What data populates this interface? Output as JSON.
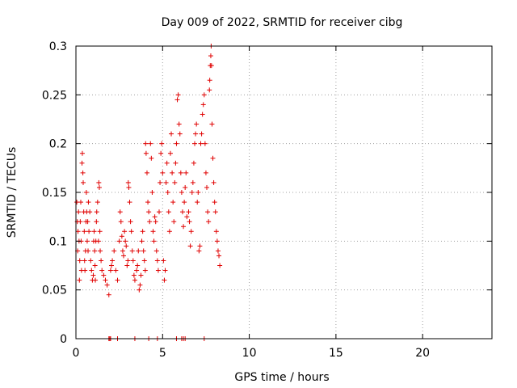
{
  "chart_data": {
    "type": "scatter",
    "title": "Day 009 of 2022, SRMTID for receiver cibg",
    "xlabel": "GPS time / hours",
    "ylabel": "SRMTID / TECUs",
    "xlim": [
      0,
      24
    ],
    "ylim": [
      0,
      0.3
    ],
    "xticks": [
      0,
      5,
      10,
      15,
      20
    ],
    "yticks": [
      0,
      0.05,
      0.1,
      0.15,
      0.2,
      0.25,
      0.3
    ],
    "xtick_labels": [
      "0",
      "5",
      "10",
      "15",
      "20"
    ],
    "ytick_labels": [
      "0",
      "0.05",
      "0.1",
      "0.15",
      "0.2",
      "0.25",
      "0.3"
    ],
    "grid": true,
    "legend": "none",
    "marker": "+",
    "color": "#e00000",
    "points": [
      [
        0.05,
        0.14
      ],
      [
        0.08,
        0.12
      ],
      [
        0.1,
        0.09
      ],
      [
        0.12,
        0.11
      ],
      [
        0.15,
        0.13
      ],
      [
        0.18,
        0.1
      ],
      [
        0.2,
        0.06
      ],
      [
        0.22,
        0.08
      ],
      [
        0.25,
        0.12
      ],
      [
        0.28,
        0.14
      ],
      [
        0.3,
        0.1
      ],
      [
        0.32,
        0.07
      ],
      [
        0.35,
        0.18
      ],
      [
        0.37,
        0.19
      ],
      [
        0.4,
        0.17
      ],
      [
        0.42,
        0.16
      ],
      [
        0.45,
        0.13
      ],
      [
        0.48,
        0.11
      ],
      [
        0.5,
        0.08
      ],
      [
        0.52,
        0.07
      ],
      [
        0.55,
        0.09
      ],
      [
        0.58,
        0.12
      ],
      [
        0.6,
        0.15
      ],
      [
        0.62,
        0.13
      ],
      [
        0.65,
        0.1
      ],
      [
        0.68,
        0.12
      ],
      [
        0.7,
        0.09
      ],
      [
        0.72,
        0.14
      ],
      [
        0.75,
        0.11
      ],
      [
        0.8,
        0.13
      ],
      [
        0.85,
        0.08
      ],
      [
        0.9,
        0.07
      ],
      [
        0.95,
        0.06
      ],
      [
        1.0,
        0.065
      ],
      [
        1.02,
        0.1
      ],
      [
        1.05,
        0.11
      ],
      [
        1.08,
        0.09
      ],
      [
        1.1,
        0.075
      ],
      [
        1.12,
        0.06
      ],
      [
        1.15,
        0.1
      ],
      [
        1.18,
        0.12
      ],
      [
        1.2,
        0.13
      ],
      [
        1.25,
        0.14
      ],
      [
        1.3,
        0.1
      ],
      [
        1.32,
        0.16
      ],
      [
        1.35,
        0.155
      ],
      [
        1.38,
        0.11
      ],
      [
        1.4,
        0.09
      ],
      [
        1.45,
        0.08
      ],
      [
        1.5,
        0.07
      ],
      [
        1.6,
        0.065
      ],
      [
        1.7,
        0.06
      ],
      [
        1.8,
        0.055
      ],
      [
        1.9,
        0.045
      ],
      [
        2.0,
        0.07
      ],
      [
        2.05,
        0.075
      ],
      [
        2.1,
        0.08
      ],
      [
        2.2,
        0.09
      ],
      [
        2.3,
        0.07
      ],
      [
        2.4,
        0.06
      ],
      [
        2.5,
        0.1
      ],
      [
        2.55,
        0.13
      ],
      [
        2.6,
        0.12
      ],
      [
        2.65,
        0.105
      ],
      [
        2.7,
        0.09
      ],
      [
        2.75,
        0.085
      ],
      [
        2.8,
        0.11
      ],
      [
        2.85,
        0.1
      ],
      [
        2.9,
        0.095
      ],
      [
        2.95,
        0.075
      ],
      [
        3.0,
        0.08
      ],
      [
        3.02,
        0.16
      ],
      [
        3.05,
        0.155
      ],
      [
        3.1,
        0.14
      ],
      [
        3.15,
        0.12
      ],
      [
        3.2,
        0.11
      ],
      [
        3.25,
        0.09
      ],
      [
        3.3,
        0.08
      ],
      [
        3.35,
        0.065
      ],
      [
        3.4,
        0.06
      ],
      [
        3.5,
        0.07
      ],
      [
        3.55,
        0.075
      ],
      [
        3.6,
        0.09
      ],
      [
        3.65,
        0.05
      ],
      [
        3.7,
        0.055
      ],
      [
        3.75,
        0.065
      ],
      [
        3.8,
        0.1
      ],
      [
        3.85,
        0.11
      ],
      [
        3.9,
        0.09
      ],
      [
        3.95,
        0.08
      ],
      [
        4.0,
        0.07
      ],
      [
        4.02,
        0.2
      ],
      [
        4.05,
        0.19
      ],
      [
        4.1,
        0.17
      ],
      [
        4.15,
        0.14
      ],
      [
        4.2,
        0.13
      ],
      [
        4.25,
        0.12
      ],
      [
        4.3,
        0.2
      ],
      [
        4.35,
        0.185
      ],
      [
        4.4,
        0.15
      ],
      [
        4.45,
        0.11
      ],
      [
        4.5,
        0.1
      ],
      [
        4.55,
        0.125
      ],
      [
        4.6,
        0.12
      ],
      [
        4.65,
        0.09
      ],
      [
        4.7,
        0.08
      ],
      [
        4.75,
        0.07
      ],
      [
        4.8,
        0.13
      ],
      [
        4.85,
        0.16
      ],
      [
        4.9,
        0.19
      ],
      [
        4.95,
        0.2
      ],
      [
        5.0,
        0.17
      ],
      [
        5.05,
        0.08
      ],
      [
        5.1,
        0.06
      ],
      [
        5.15,
        0.07
      ],
      [
        5.2,
        0.16
      ],
      [
        5.25,
        0.18
      ],
      [
        5.3,
        0.15
      ],
      [
        5.35,
        0.13
      ],
      [
        5.4,
        0.11
      ],
      [
        5.45,
        0.19
      ],
      [
        5.5,
        0.21
      ],
      [
        5.55,
        0.17
      ],
      [
        5.6,
        0.14
      ],
      [
        5.65,
        0.12
      ],
      [
        5.7,
        0.16
      ],
      [
        5.75,
        0.18
      ],
      [
        5.8,
        0.2
      ],
      [
        5.85,
        0.245
      ],
      [
        5.9,
        0.25
      ],
      [
        5.95,
        0.22
      ],
      [
        6.0,
        0.21
      ],
      [
        6.05,
        0.17
      ],
      [
        6.1,
        0.15
      ],
      [
        6.15,
        0.13
      ],
      [
        6.2,
        0.115
      ],
      [
        6.25,
        0.14
      ],
      [
        6.3,
        0.155
      ],
      [
        6.35,
        0.17
      ],
      [
        6.4,
        0.125
      ],
      [
        6.5,
        0.13
      ],
      [
        6.55,
        0.12
      ],
      [
        6.6,
        0.095
      ],
      [
        6.65,
        0.11
      ],
      [
        6.7,
        0.15
      ],
      [
        6.75,
        0.16
      ],
      [
        6.8,
        0.18
      ],
      [
        6.85,
        0.2
      ],
      [
        6.9,
        0.21
      ],
      [
        6.95,
        0.22
      ],
      [
        7.0,
        0.14
      ],
      [
        7.05,
        0.15
      ],
      [
        7.1,
        0.09
      ],
      [
        7.15,
        0.095
      ],
      [
        7.2,
        0.2
      ],
      [
        7.25,
        0.21
      ],
      [
        7.3,
        0.23
      ],
      [
        7.35,
        0.24
      ],
      [
        7.4,
        0.25
      ],
      [
        7.45,
        0.2
      ],
      [
        7.5,
        0.17
      ],
      [
        7.55,
        0.155
      ],
      [
        7.6,
        0.13
      ],
      [
        7.65,
        0.12
      ],
      [
        7.7,
        0.255
      ],
      [
        7.72,
        0.265
      ],
      [
        7.75,
        0.28
      ],
      [
        7.78,
        0.29
      ],
      [
        7.8,
        0.3
      ],
      [
        7.82,
        0.28
      ],
      [
        7.85,
        0.22
      ],
      [
        7.9,
        0.185
      ],
      [
        7.95,
        0.16
      ],
      [
        8.0,
        0.14
      ],
      [
        8.05,
        0.13
      ],
      [
        8.1,
        0.11
      ],
      [
        8.15,
        0.1
      ],
      [
        8.2,
        0.09
      ],
      [
        8.25,
        0.085
      ],
      [
        8.3,
        0.075
      ],
      [
        1.9,
        0.0
      ],
      [
        1.95,
        0.0
      ],
      [
        2.0,
        0.0
      ],
      [
        2.4,
        0.0
      ],
      [
        3.4,
        0.0
      ],
      [
        4.2,
        0.0
      ],
      [
        4.7,
        0.0
      ],
      [
        5.8,
        0.0
      ],
      [
        6.1,
        0.0
      ],
      [
        6.2,
        0.0
      ],
      [
        6.3,
        0.0
      ],
      [
        7.4,
        0.0
      ]
    ]
  }
}
